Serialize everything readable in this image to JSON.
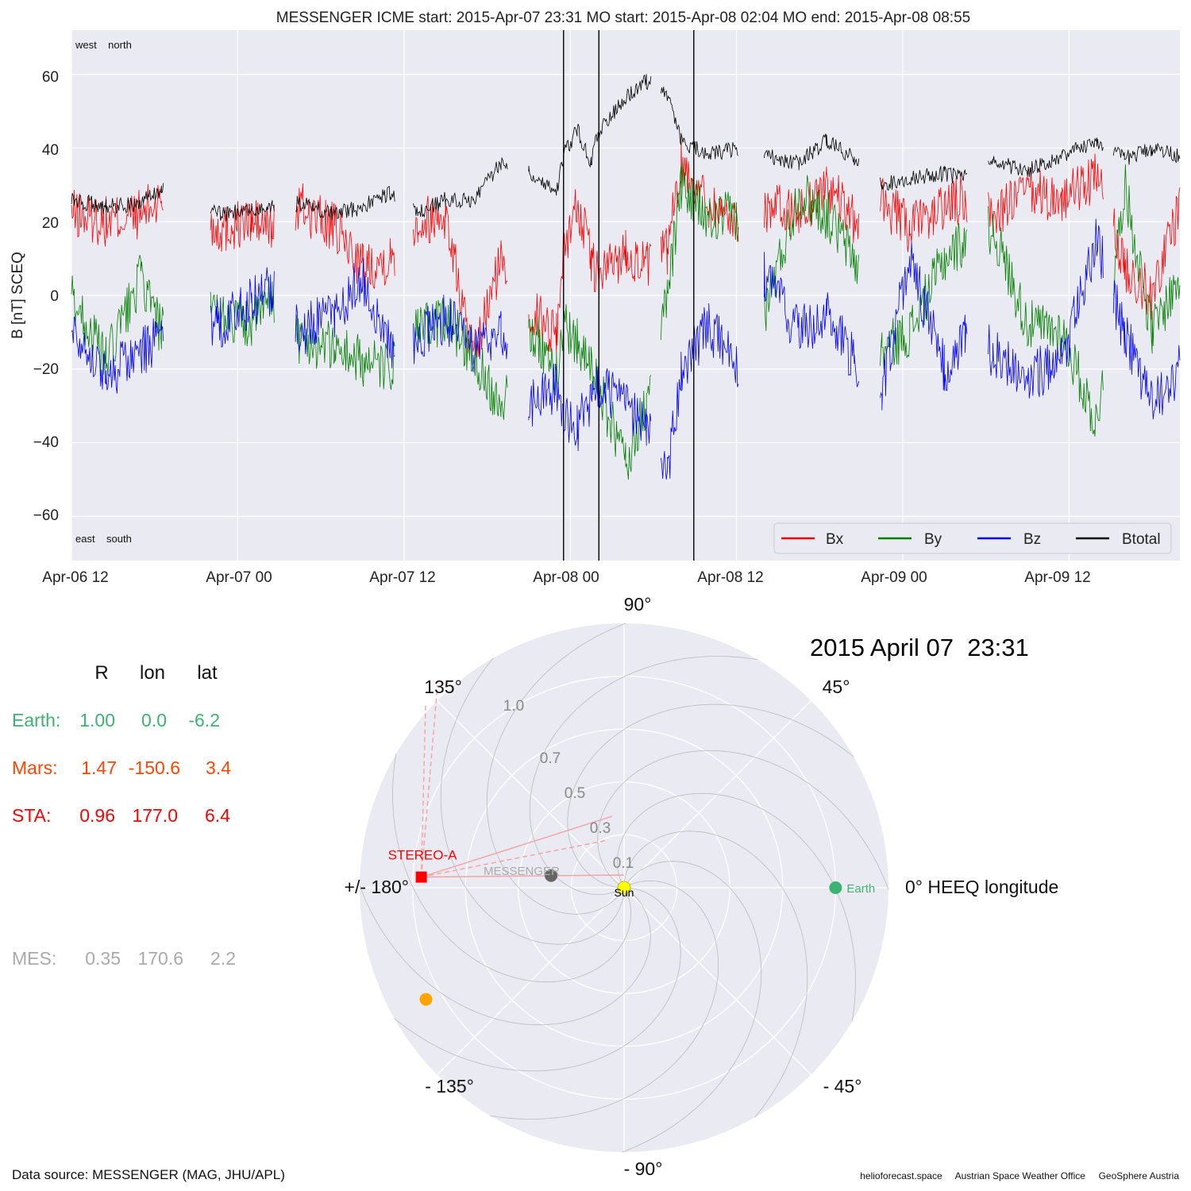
{
  "title": "MESSENGER    ICME start: 2015-Apr-07 23:31   MO start: 2015-Apr-08 02:04   MO end: 2015-Apr-08 08:55",
  "ts_panel": {
    "ylabel": "B [nT] SCEQ",
    "corner_labels": {
      "top": "west    north",
      "bottom": "east    south"
    },
    "x_ticks": [
      "Apr-06 12",
      "Apr-07 00",
      "Apr-07 12",
      "Apr-08 00",
      "Apr-08 12",
      "Apr-09 00",
      "Apr-09 12"
    ],
    "y_ticks": [
      "60",
      "40",
      "20",
      "0",
      "−20",
      "−40",
      "−60"
    ],
    "colors": {
      "Bx": "#ff0000",
      "By": "#008000",
      "Bz": "#0000ff",
      "Btotal": "#000000"
    }
  },
  "polar_panel": {
    "date_label": "2015 April 07  23:31",
    "angle_labels": {
      "a90": "90°",
      "a45": "45°",
      "a0": "0° HEEQ longitude",
      "am45": "- 45°",
      "am90": "- 90°",
      "am135": "- 135°",
      "a180": "+/- 180°",
      "a135": "135°"
    },
    "radial_labels": [
      "0.1",
      "0.3",
      "0.5",
      "0.7",
      "1.0"
    ],
    "bodies": [
      {
        "name": "Earth",
        "r": 1.0,
        "lon": 0.0,
        "color": "#3cb371",
        "label": "Earth"
      },
      {
        "name": "Mars",
        "r": 1.47,
        "lon": -150.6,
        "color": "#ffa500",
        "label": ""
      },
      {
        "name": "STEREO-A",
        "r": 0.96,
        "lon": 177.0,
        "color": "#ff0000",
        "label": "STEREO-A"
      },
      {
        "name": "MESSENGER",
        "r": 0.35,
        "lon": 170.6,
        "color": "#666666",
        "label": "MESSENGER"
      },
      {
        "name": "Sun",
        "r": 0.0,
        "lon": 0.0,
        "color": "#ffff00",
        "label": "Sun"
      }
    ]
  },
  "position_table": {
    "headers": [
      "R",
      "lon",
      "lat"
    ],
    "rows": [
      {
        "name": "Earth:",
        "R": "1.00",
        "lon": "0.0",
        "lat": "-6.2",
        "color": "#3cb371"
      },
      {
        "name": "Mars:",
        "R": "1.47",
        "lon": "-150.6",
        "lat": "3.4",
        "color": "#ff4500"
      },
      {
        "name": "STA:",
        "R": "0.96",
        "lon": "177.0",
        "lat": "6.4",
        "color": "#ff0000"
      },
      {
        "name": "MES:",
        "R": "0.35",
        "lon": "170.6",
        "lat": "2.2",
        "color": "#aaaaaa"
      }
    ]
  },
  "footer": {
    "source": "Data source: MESSENGER (MAG, JHU/APL)",
    "credits": "helioforecast.space     Austrian Space Weather Office     GeoSphere Austria"
  },
  "chart_data": {
    "type": "line",
    "xlabel": "",
    "ylabel": "B [nT] SCEQ",
    "xlim": [
      "2015-04-06 12:00",
      "2015-04-09 20:00"
    ],
    "ylim": [
      -72,
      72
    ],
    "legend": {
      "position": "bottom-right",
      "entries": [
        "Bx",
        "By",
        "Bz",
        "Btotal"
      ]
    },
    "grid": true,
    "vlines": [
      {
        "label": "ICME start",
        "t": "2015-04-07 23:31"
      },
      {
        "label": "MO start",
        "t": "2015-04-08 02:04"
      },
      {
        "label": "MO end",
        "t": "2015-04-08 08:55"
      }
    ],
    "series": [
      {
        "name": "Btotal",
        "color": "#000000",
        "points": [
          [
            "04-06 12:00",
            26
          ],
          [
            "04-06 14:30",
            24
          ],
          [
            "04-06 17:00",
            25
          ],
          [
            "04-06 18:30",
            29
          ],
          [
            "04-06 22:30",
            22
          ],
          [
            "04-07 01:00",
            23
          ],
          [
            "04-07 02:30",
            24
          ],
          [
            "04-07 04:30",
            25
          ],
          [
            "04-07 07:00",
            22
          ],
          [
            "04-07 09:00",
            24
          ],
          [
            "04-07 11:00",
            28
          ],
          [
            "04-07 13:00",
            22
          ],
          [
            "04-07 15:00",
            26
          ],
          [
            "04-07 17:00",
            26
          ],
          [
            "04-07 19:00",
            36
          ],
          [
            "04-07 21:00",
            34
          ],
          [
            "04-07 23:00",
            28
          ],
          [
            "04-07 23:30",
            38
          ],
          [
            "04-08 00:30",
            45
          ],
          [
            "04-08 01:30",
            36
          ],
          [
            "04-08 02:00",
            44
          ],
          [
            "04-08 04:00",
            54
          ],
          [
            "04-08 05:30",
            58
          ],
          [
            "04-08 07:00",
            55
          ],
          [
            "04-08 08:00",
            42
          ],
          [
            "04-08 10:00",
            38
          ],
          [
            "04-08 12:00",
            40
          ],
          [
            "04-08 14:00",
            38
          ],
          [
            "04-08 16:30",
            36
          ],
          [
            "04-08 18:30",
            42
          ],
          [
            "04-08 20:30",
            37
          ],
          [
            "04-08 22:30",
            30
          ],
          [
            "04-09 00:30",
            32
          ],
          [
            "04-09 03:00",
            33
          ],
          [
            "04-09 04:30",
            32
          ],
          [
            "04-09 06:30",
            36
          ],
          [
            "04-09 09:00",
            34
          ],
          [
            "04-09 11:30",
            38
          ],
          [
            "04-09 14:00",
            42
          ],
          [
            "04-09 16:00",
            37
          ],
          [
            "04-09 18:00",
            40
          ],
          [
            "04-09 20:00",
            38
          ]
        ]
      },
      {
        "name": "Bx",
        "color": "#ff0000",
        "points": [
          [
            "04-06 12:00",
            22
          ],
          [
            "04-06 14:30",
            20
          ],
          [
            "04-06 17:00",
            22
          ],
          [
            "04-06 18:30",
            26
          ],
          [
            "04-06 22:30",
            18
          ],
          [
            "04-07 01:00",
            20
          ],
          [
            "04-07 02:30",
            18
          ],
          [
            "04-07 04:30",
            24
          ],
          [
            "04-07 07:00",
            18
          ],
          [
            "04-07 09:00",
            8
          ],
          [
            "04-07 11:00",
            10
          ],
          [
            "04-07 13:00",
            20
          ],
          [
            "04-07 15:00",
            22
          ],
          [
            "04-07 17:00",
            -18
          ],
          [
            "04-07 19:00",
            10
          ],
          [
            "04-07 21:00",
            -4
          ],
          [
            "04-07 23:00",
            -10
          ],
          [
            "04-07 23:30",
            12
          ],
          [
            "04-08 00:30",
            25
          ],
          [
            "04-08 01:30",
            10
          ],
          [
            "04-08 02:00",
            5
          ],
          [
            "04-08 04:00",
            12
          ],
          [
            "04-08 05:30",
            8
          ],
          [
            "04-08 07:00",
            12
          ],
          [
            "04-08 08:00",
            36
          ],
          [
            "04-08 10:00",
            25
          ],
          [
            "04-08 12:00",
            20
          ],
          [
            "04-08 14:00",
            24
          ],
          [
            "04-08 16:30",
            22
          ],
          [
            "04-08 18:30",
            30
          ],
          [
            "04-08 20:30",
            20
          ],
          [
            "04-08 22:30",
            26
          ],
          [
            "04-09 00:30",
            18
          ],
          [
            "04-09 03:00",
            24
          ],
          [
            "04-09 04:30",
            26
          ],
          [
            "04-09 06:30",
            22
          ],
          [
            "04-09 09:00",
            28
          ],
          [
            "04-09 11:30",
            26
          ],
          [
            "04-09 14:00",
            32
          ],
          [
            "04-09 16:00",
            8
          ],
          [
            "04-09 18:00",
            0
          ],
          [
            "04-09 20:00",
            25
          ]
        ]
      },
      {
        "name": "By",
        "color": "#008000",
        "points": [
          [
            "04-06 12:00",
            0
          ],
          [
            "04-06 14:30",
            -18
          ],
          [
            "04-06 17:00",
            5
          ],
          [
            "04-06 18:30",
            -10
          ],
          [
            "04-06 22:30",
            -5
          ],
          [
            "04-07 01:00",
            -8
          ],
          [
            "04-07 02:30",
            0
          ],
          [
            "04-07 04:30",
            -12
          ],
          [
            "04-07 07:00",
            -14
          ],
          [
            "04-07 09:00",
            -18
          ],
          [
            "04-07 11:00",
            -20
          ],
          [
            "04-07 13:00",
            -10
          ],
          [
            "04-07 15:00",
            -6
          ],
          [
            "04-07 17:00",
            -16
          ],
          [
            "04-07 19:00",
            -30
          ],
          [
            "04-07 21:00",
            -8
          ],
          [
            "04-07 23:00",
            -22
          ],
          [
            "04-07 23:30",
            -8
          ],
          [
            "04-08 00:30",
            -12
          ],
          [
            "04-08 01:30",
            -20
          ],
          [
            "04-08 02:00",
            -25
          ],
          [
            "04-08 04:00",
            -45
          ],
          [
            "04-08 05:30",
            -30
          ],
          [
            "04-08 07:00",
            0
          ],
          [
            "04-08 08:00",
            30
          ],
          [
            "04-08 10:00",
            20
          ],
          [
            "04-08 12:00",
            22
          ],
          [
            "04-08 14:00",
            -5
          ],
          [
            "04-08 16:30",
            28
          ],
          [
            "04-08 18:30",
            22
          ],
          [
            "04-08 20:30",
            10
          ],
          [
            "04-08 22:30",
            -15
          ],
          [
            "04-09 00:30",
            -10
          ],
          [
            "04-09 03:00",
            10
          ],
          [
            "04-09 04:30",
            15
          ],
          [
            "04-09 06:30",
            18
          ],
          [
            "04-09 09:00",
            -8
          ],
          [
            "04-09 11:30",
            -10
          ],
          [
            "04-09 14:00",
            -35
          ],
          [
            "04-09 16:00",
            30
          ],
          [
            "04-09 18:00",
            -10
          ],
          [
            "04-09 20:00",
            5
          ]
        ]
      },
      {
        "name": "Bz",
        "color": "#0000ff",
        "points": [
          [
            "04-06 12:00",
            -8
          ],
          [
            "04-06 14:30",
            -22
          ],
          [
            "04-06 17:00",
            -15
          ],
          [
            "04-06 18:30",
            -12
          ],
          [
            "04-06 22:30",
            -8
          ],
          [
            "04-07 01:00",
            -2
          ],
          [
            "04-07 02:30",
            2
          ],
          [
            "04-07 04:30",
            -10
          ],
          [
            "04-07 07:00",
            -5
          ],
          [
            "04-07 09:00",
            5
          ],
          [
            "04-07 11:00",
            -14
          ],
          [
            "04-07 13:00",
            -12
          ],
          [
            "04-07 15:00",
            -6
          ],
          [
            "04-07 17:00",
            -14
          ],
          [
            "04-07 19:00",
            -10
          ],
          [
            "04-07 21:00",
            -30
          ],
          [
            "04-07 23:00",
            -25
          ],
          [
            "04-07 23:30",
            -33
          ],
          [
            "04-08 00:30",
            -36
          ],
          [
            "04-08 01:30",
            -28
          ],
          [
            "04-08 02:00",
            -25
          ],
          [
            "04-08 04:00",
            -30
          ],
          [
            "04-08 05:30",
            -35
          ],
          [
            "04-08 07:00",
            -50
          ],
          [
            "04-08 08:00",
            -20
          ],
          [
            "04-08 10:00",
            -8
          ],
          [
            "04-08 12:00",
            -20
          ],
          [
            "04-08 14:00",
            5
          ],
          [
            "04-08 16:30",
            -10
          ],
          [
            "04-08 18:30",
            -5
          ],
          [
            "04-08 20:30",
            -18
          ],
          [
            "04-08 22:30",
            -25
          ],
          [
            "04-09 00:30",
            10
          ],
          [
            "04-09 03:00",
            -20
          ],
          [
            "04-09 04:30",
            -12
          ],
          [
            "04-09 06:30",
            -15
          ],
          [
            "04-09 09:00",
            -22
          ],
          [
            "04-09 11:30",
            -18
          ],
          [
            "04-09 14:00",
            15
          ],
          [
            "04-09 16:00",
            -10
          ],
          [
            "04-09 18:00",
            -30
          ],
          [
            "04-09 20:00",
            -20
          ]
        ]
      }
    ]
  }
}
